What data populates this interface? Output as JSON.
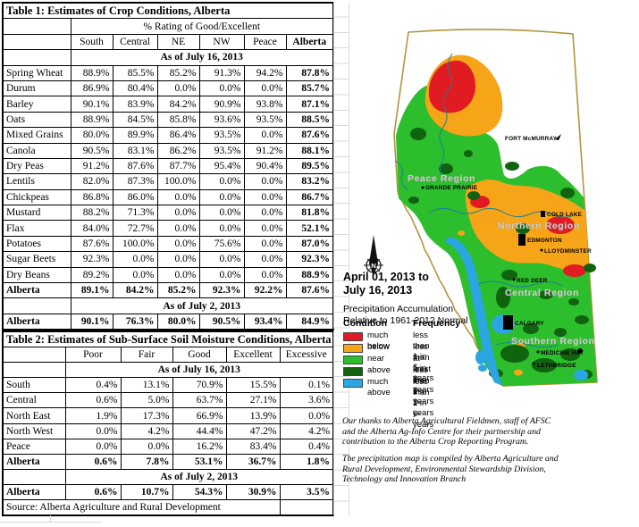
{
  "table1": {
    "title": "Table 1: Estimates of Crop Conditions, Alberta",
    "subheader": "% Rating of Good/Excellent",
    "columns": [
      "South",
      "Central",
      "NE",
      "NW",
      "Peace",
      "Alberta"
    ],
    "section1_label": "As of July 16, 2013",
    "rows": [
      {
        "label": "Spring Wheat",
        "values": [
          "88.9%",
          "85.5%",
          "85.2%",
          "91.3%",
          "94.2%",
          "87.8%"
        ]
      },
      {
        "label": "Durum",
        "values": [
          "86.9%",
          "80.4%",
          "0.0%",
          "0.0%",
          "0.0%",
          "85.7%"
        ]
      },
      {
        "label": "Barley",
        "values": [
          "90.1%",
          "83.9%",
          "84.2%",
          "90.9%",
          "93.8%",
          "87.1%"
        ]
      },
      {
        "label": "Oats",
        "values": [
          "88.9%",
          "84.5%",
          "85.8%",
          "93.6%",
          "93.5%",
          "88.5%"
        ]
      },
      {
        "label": "Mixed Grains",
        "values": [
          "80.0%",
          "89.9%",
          "86.4%",
          "93.5%",
          "0.0%",
          "87.6%"
        ]
      },
      {
        "label": "Canola",
        "values": [
          "90.5%",
          "83.1%",
          "86.2%",
          "93.5%",
          "91.2%",
          "88.1%"
        ]
      },
      {
        "label": "Dry Peas",
        "values": [
          "91.2%",
          "87.6%",
          "87.7%",
          "95.4%",
          "90.4%",
          "89.5%"
        ]
      },
      {
        "label": "Lentils",
        "values": [
          "82.0%",
          "87.3%",
          "100.0%",
          "0.0%",
          "0.0%",
          "83.2%"
        ]
      },
      {
        "label": "Chickpeas",
        "values": [
          "86.8%",
          "86.0%",
          "0.0%",
          "0.0%",
          "0.0%",
          "86.7%"
        ]
      },
      {
        "label": "Mustard",
        "values": [
          "88.2%",
          "71.3%",
          "0.0%",
          "0.0%",
          "0.0%",
          "81.8%"
        ]
      },
      {
        "label": "Flax",
        "values": [
          "84.0%",
          "72.7%",
          "0.0%",
          "0.0%",
          "0.0%",
          "52.1%"
        ]
      },
      {
        "label": "Potatoes",
        "values": [
          "87.6%",
          "100.0%",
          "0.0%",
          "75.6%",
          "0.0%",
          "87.0%"
        ]
      },
      {
        "label": "Sugar Beets",
        "values": [
          "92.3%",
          "0.0%",
          "0.0%",
          "0.0%",
          "0.0%",
          "92.3%"
        ]
      },
      {
        "label": "Dry Beans",
        "values": [
          "89.2%",
          "0.0%",
          "0.0%",
          "0.0%",
          "0.0%",
          "88.9%"
        ]
      },
      {
        "label": "Alberta",
        "bold": true,
        "values": [
          "89.1%",
          "84.2%",
          "85.2%",
          "92.3%",
          "92.2%",
          "87.6%"
        ]
      }
    ],
    "section2_label": "As of July 2, 2013",
    "rows2": [
      {
        "label": "Alberta",
        "bold": true,
        "values": [
          "90.1%",
          "76.3%",
          "80.0%",
          "90.5%",
          "93.4%",
          "84.9%"
        ]
      }
    ]
  },
  "table2": {
    "title": "Table 2: Estimates of Sub-Surface Soil Moisture Conditions, Alberta",
    "columns": [
      "Poor",
      "Fair",
      "Good",
      "Excellent",
      "Excessive"
    ],
    "section1_label": "As of July 16, 2013",
    "rows": [
      {
        "label": "South",
        "values": [
          "0.4%",
          "13.1%",
          "70.9%",
          "15.5%",
          "0.1%"
        ]
      },
      {
        "label": "Central",
        "values": [
          "0.6%",
          "5.0%",
          "63.7%",
          "27.1%",
          "3.6%"
        ]
      },
      {
        "label": "North East",
        "values": [
          "1.9%",
          "17.3%",
          "66.9%",
          "13.9%",
          "0.0%"
        ]
      },
      {
        "label": "North West",
        "values": [
          "0.0%",
          "4.2%",
          "44.4%",
          "47.2%",
          "4.2%"
        ]
      },
      {
        "label": "Peace",
        "values": [
          "0.0%",
          "0.0%",
          "16.2%",
          "83.4%",
          "0.4%"
        ]
      },
      {
        "label": "Alberta",
        "bold": true,
        "values": [
          "0.6%",
          "7.8%",
          "53.1%",
          "36.7%",
          "1.8%"
        ]
      }
    ],
    "section2_label": "As of July 2, 2013",
    "rows2": [
      {
        "label": "Alberta",
        "bold": true,
        "values": [
          "0.6%",
          "10.7%",
          "54.3%",
          "30.9%",
          "3.5%"
        ]
      }
    ],
    "source": "Source: Alberta Agriculture and Rural Development"
  },
  "map": {
    "date_line1": "April 01, 2013 to",
    "date_line2": "July 16, 2013",
    "subtitle_line1": "Precipitation Accumulation",
    "subtitle_line2": "Relative to 1961-2012 Normal",
    "legend": {
      "condition_header": "Condition",
      "frequency_header": "Frequency",
      "items": [
        {
          "label": "much below",
          "frequency": "less than 1 in 6-years",
          "color": "#e11b22"
        },
        {
          "label": "below",
          "frequency": "less than 1 in 3-years",
          "color": "#f6a418"
        },
        {
          "label": "near",
          "frequency": "at least 1 in 3-years",
          "color": "#2dbe2d"
        },
        {
          "label": "above",
          "frequency": "less than 1 in 3-years",
          "color": "#106410"
        },
        {
          "label": "much above",
          "frequency": "less than 1 in 6-years",
          "color": "#2aa6e2"
        }
      ]
    },
    "labels": {
      "peace": "Peace Region",
      "northern": "Northern Region",
      "central": "Central Region",
      "southern": "Southern Region",
      "grande_prairie": "GRANDE PRAIRIE",
      "fort_mcmurray": "FORT McMURRAY",
      "cold_lake": "COLD LAKE",
      "edmonton": "EDMONTON",
      "lloydminster": "LLOYDMINSTER",
      "red_deer": "RED DEER",
      "calgary": "CALGARY",
      "medicine_hat": "MEDICINE HAT",
      "lethbridge": "LETHBRIDGE"
    },
    "compass_letter": "N"
  },
  "notes": {
    "para1": "Our thanks to Alberta Agricultural Fieldmen, staff of AFSC and the Alberta Ag-Info Centre for their partnership and contribution to the Alberta Crop Reporting Program.",
    "para2": "The precipitation map is compiled by Alberta Agriculture and Rural Development, Environmental Stewardship Division, Technology and Innovation Branch"
  }
}
